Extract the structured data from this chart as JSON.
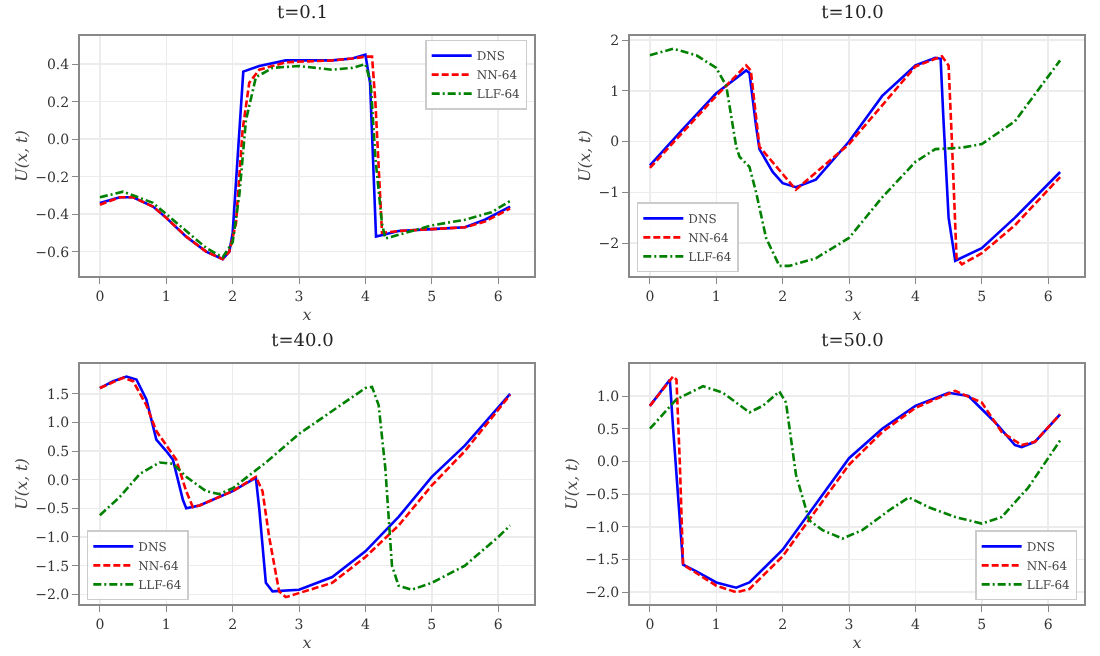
{
  "chart_data": [
    {
      "type": "line",
      "title": "t=0.1",
      "xlabel": "x",
      "ylabel": "U(x, t)",
      "xlim": [
        -0.3,
        6.54
      ],
      "ylim": [
        -0.73,
        0.55
      ],
      "xticks": [
        0,
        1,
        2,
        3,
        4,
        5,
        6
      ],
      "yticks": [
        {
          "value": -0.6,
          "label": "−0.6"
        },
        {
          "value": -0.4,
          "label": "−0.4"
        },
        {
          "value": -0.2,
          "label": "−0.2"
        },
        {
          "value": 0,
          "label": "0.0"
        },
        {
          "value": 0.2,
          "label": "0.2"
        },
        {
          "value": 0.4,
          "label": "0.4"
        }
      ],
      "grid": true,
      "legend": "top right",
      "series": [
        {
          "name": "DNS",
          "color": "#0000ff",
          "line_style": "solid",
          "x": [
            0,
            0.3,
            0.5,
            0.8,
            1.0,
            1.3,
            1.6,
            1.85,
            1.95,
            2.0,
            2.16,
            2.4,
            2.8,
            3.5,
            3.8,
            4.0,
            4.07,
            4.16,
            4.5,
            5.0,
            5.5,
            5.8,
            6.18
          ],
          "values": [
            -0.34,
            -0.31,
            -0.31,
            -0.36,
            -0.42,
            -0.52,
            -0.6,
            -0.64,
            -0.6,
            -0.5,
            0.36,
            0.39,
            0.42,
            0.42,
            0.43,
            0.45,
            0.3,
            -0.52,
            -0.49,
            -0.48,
            -0.47,
            -0.43,
            -0.36
          ]
        },
        {
          "name": "NN-64",
          "color": "#ff0000",
          "line_style": "dashed",
          "x": [
            0,
            0.3,
            0.5,
            0.8,
            1.0,
            1.3,
            1.6,
            1.85,
            1.95,
            2.05,
            2.15,
            2.25,
            2.4,
            2.8,
            3.5,
            3.8,
            4.0,
            4.1,
            4.15,
            4.25,
            4.5,
            5.0,
            5.5,
            5.8,
            6.18
          ],
          "values": [
            -0.35,
            -0.31,
            -0.31,
            -0.36,
            -0.42,
            -0.52,
            -0.6,
            -0.64,
            -0.6,
            -0.45,
            0.05,
            0.3,
            0.37,
            0.41,
            0.42,
            0.43,
            0.44,
            0.44,
            0.2,
            -0.5,
            -0.49,
            -0.48,
            -0.47,
            -0.44,
            -0.37
          ]
        },
        {
          "name": "LLF-64",
          "color": "#008000",
          "line_style": "dashdot",
          "x": [
            0,
            0.35,
            0.8,
            1.2,
            1.6,
            1.85,
            2.0,
            2.1,
            2.2,
            2.35,
            2.6,
            3.0,
            3.5,
            3.8,
            4.0,
            4.08,
            4.15,
            4.25,
            4.3,
            4.6,
            5.0,
            5.5,
            5.9,
            6.18
          ],
          "values": [
            -0.31,
            -0.28,
            -0.34,
            -0.46,
            -0.58,
            -0.63,
            -0.55,
            -0.3,
            0.1,
            0.33,
            0.38,
            0.39,
            0.37,
            0.38,
            0.4,
            0.3,
            -0.1,
            -0.45,
            -0.53,
            -0.5,
            -0.46,
            -0.43,
            -0.39,
            -0.33
          ]
        }
      ]
    },
    {
      "type": "line",
      "title": "t=10.0",
      "xlabel": "x",
      "ylabel": "U(x, t)",
      "xlim": [
        -0.3,
        6.54
      ],
      "ylim": [
        -2.65,
        2.08
      ],
      "xticks": [
        0,
        1,
        2,
        3,
        4,
        5,
        6
      ],
      "yticks": [
        {
          "value": -2,
          "label": "−2"
        },
        {
          "value": -1,
          "label": "−1"
        },
        0,
        1,
        2
      ],
      "grid": true,
      "legend": "bottom left",
      "series": [
        {
          "name": "DNS",
          "color": "#0000ff",
          "line_style": "solid",
          "x": [
            0,
            0.5,
            1.0,
            1.3,
            1.45,
            1.5,
            1.6,
            1.65,
            1.85,
            2.0,
            2.2,
            2.5,
            3.0,
            3.5,
            4.0,
            4.3,
            4.38,
            4.42,
            4.5,
            4.6,
            5.0,
            5.5,
            6.18
          ],
          "values": [
            -0.47,
            0.25,
            0.95,
            1.25,
            1.4,
            1.35,
            0.3,
            -0.15,
            -0.6,
            -0.82,
            -0.9,
            -0.75,
            0.0,
            0.9,
            1.5,
            1.65,
            1.63,
            0.5,
            -1.5,
            -2.35,
            -2.1,
            -1.5,
            -0.6
          ]
        },
        {
          "name": "NN-64",
          "color": "#ff0000",
          "line_style": "dashed",
          "x": [
            0,
            1.0,
            1.3,
            1.45,
            1.52,
            1.65,
            2.2,
            3.0,
            4.0,
            4.4,
            4.5,
            4.55,
            4.62,
            4.7,
            5.0,
            5.5,
            6.18
          ],
          "values": [
            -0.52,
            0.9,
            1.3,
            1.5,
            1.4,
            -0.1,
            -0.95,
            -0.05,
            1.48,
            1.68,
            1.5,
            0,
            -2.3,
            -2.42,
            -2.2,
            -1.65,
            -0.7
          ]
        },
        {
          "name": "LLF-64",
          "color": "#008000",
          "line_style": "dashdot",
          "x": [
            0,
            0.35,
            0.7,
            1.0,
            1.15,
            1.3,
            1.35,
            1.5,
            1.6,
            1.75,
            1.95,
            2.1,
            2.5,
            3.0,
            3.5,
            4.0,
            4.3,
            4.7,
            5.0,
            5.5,
            6.18
          ],
          "values": [
            1.7,
            1.83,
            1.7,
            1.45,
            1.1,
            -0.1,
            -0.3,
            -0.5,
            -1.0,
            -1.9,
            -2.45,
            -2.45,
            -2.3,
            -1.9,
            -1.1,
            -0.4,
            -0.15,
            -0.12,
            -0.05,
            0.4,
            1.6
          ]
        }
      ]
    },
    {
      "type": "line",
      "title": "t=40.0",
      "xlabel": "x",
      "ylabel": "U(x, t)",
      "xlim": [
        -0.3,
        6.54
      ],
      "ylim": [
        -2.17,
        2.02
      ],
      "xticks": [
        0,
        1,
        2,
        3,
        4,
        5,
        6
      ],
      "yticks": [
        {
          "value": -2,
          "label": "−2.0"
        },
        {
          "value": -1.5,
          "label": "−1.5"
        },
        {
          "value": -1,
          "label": "−1.0"
        },
        {
          "value": -0.5,
          "label": "−0.5"
        },
        {
          "value": 0,
          "label": "0.0"
        },
        {
          "value": 0.5,
          "label": "0.5"
        },
        {
          "value": 1,
          "label": "1.0"
        },
        {
          "value": 1.5,
          "label": "1.5"
        }
      ],
      "grid": true,
      "legend": "bottom left",
      "series": [
        {
          "name": "DNS",
          "color": "#0000ff",
          "line_style": "solid",
          "x": [
            0,
            0.2,
            0.4,
            0.55,
            0.7,
            0.85,
            1.0,
            1.1,
            1.25,
            1.3,
            1.5,
            2.0,
            2.3,
            2.35,
            2.4,
            2.5,
            2.6,
            3.0,
            3.5,
            4.0,
            4.5,
            5.0,
            5.5,
            6.18
          ],
          "values": [
            1.6,
            1.72,
            1.8,
            1.75,
            1.4,
            0.7,
            0.5,
            0.35,
            -0.35,
            -0.5,
            -0.45,
            -0.2,
            0.0,
            0.03,
            -0.5,
            -1.8,
            -1.95,
            -1.92,
            -1.7,
            -1.25,
            -0.65,
            0.05,
            0.6,
            1.5
          ]
        },
        {
          "name": "NN-64",
          "color": "#ff0000",
          "line_style": "dashed",
          "x": [
            0,
            0.35,
            0.5,
            0.7,
            0.85,
            1.0,
            1.15,
            1.3,
            1.4,
            1.5,
            2.0,
            2.35,
            2.45,
            2.55,
            2.7,
            2.8,
            3.0,
            3.5,
            4.0,
            4.5,
            5.0,
            5.5,
            6.18
          ],
          "values": [
            1.6,
            1.78,
            1.72,
            1.3,
            0.85,
            0.6,
            0.35,
            -0.2,
            -0.48,
            -0.45,
            -0.2,
            0.05,
            -0.2,
            -1.0,
            -1.95,
            -2.05,
            -1.98,
            -1.8,
            -1.35,
            -0.8,
            -0.1,
            0.5,
            1.48
          ]
        },
        {
          "name": "LLF-64",
          "color": "#008000",
          "line_style": "dashdot",
          "x": [
            0,
            0.3,
            0.6,
            0.9,
            1.1,
            1.3,
            1.6,
            1.8,
            2.0,
            2.5,
            3.0,
            3.5,
            4.0,
            4.1,
            4.2,
            4.3,
            4.4,
            4.5,
            4.7,
            5.0,
            5.5,
            6.0,
            6.18
          ],
          "values": [
            -0.62,
            -0.3,
            0.1,
            0.3,
            0.28,
            0.05,
            -0.2,
            -0.25,
            -0.15,
            0.3,
            0.8,
            1.2,
            1.6,
            1.62,
            1.3,
            0.2,
            -1.5,
            -1.85,
            -1.92,
            -1.8,
            -1.5,
            -1.0,
            -0.8
          ]
        }
      ]
    },
    {
      "type": "line",
      "title": "t=50.0",
      "xlabel": "x",
      "ylabel": "U(x, t)",
      "xlim": [
        -0.3,
        6.54
      ],
      "ylim": [
        -2.18,
        1.49
      ],
      "xticks": [
        0,
        1,
        2,
        3,
        4,
        5,
        6
      ],
      "yticks": [
        {
          "value": -2,
          "label": "−2.0"
        },
        {
          "value": -1.5,
          "label": "−1.5"
        },
        {
          "value": -1,
          "label": "−1.0"
        },
        {
          "value": -0.5,
          "label": "−0.5"
        },
        {
          "value": 0,
          "label": "0.0"
        },
        {
          "value": 0.5,
          "label": "0.5"
        },
        {
          "value": 1,
          "label": "1.0"
        }
      ],
      "grid": true,
      "legend": "bottom right",
      "series": [
        {
          "name": "DNS",
          "color": "#0000ff",
          "line_style": "solid",
          "x": [
            0,
            0.3,
            0.35,
            0.5,
            0.7,
            1.0,
            1.3,
            1.5,
            2.0,
            2.5,
            3.0,
            3.5,
            4.0,
            4.5,
            4.8,
            5.2,
            5.5,
            5.6,
            5.8,
            6.18
          ],
          "values": [
            0.85,
            1.25,
            0.5,
            -1.58,
            -1.68,
            -1.85,
            -1.93,
            -1.85,
            -1.35,
            -0.65,
            0.05,
            0.5,
            0.85,
            1.05,
            1.0,
            0.6,
            0.25,
            0.22,
            0.3,
            0.72
          ]
        },
        {
          "name": "NN-64",
          "color": "#ff0000",
          "line_style": "dashed",
          "x": [
            0,
            0.35,
            0.4,
            0.45,
            0.5,
            1.0,
            1.3,
            1.5,
            2.0,
            2.5,
            3.0,
            3.5,
            4.0,
            4.6,
            5.0,
            5.3,
            5.6,
            5.8,
            6.18
          ],
          "values": [
            0.85,
            1.3,
            1.25,
            0.0,
            -1.58,
            -1.9,
            -2.0,
            -1.95,
            -1.45,
            -0.75,
            -0.05,
            0.45,
            0.82,
            1.08,
            0.9,
            0.45,
            0.25,
            0.3,
            0.72
          ]
        },
        {
          "name": "LLF-64",
          "color": "#008000",
          "line_style": "dashdot",
          "x": [
            0,
            0.4,
            0.8,
            1.1,
            1.5,
            1.7,
            1.95,
            2.05,
            2.2,
            2.4,
            2.6,
            2.9,
            3.2,
            3.6,
            3.9,
            4.2,
            4.6,
            5.0,
            5.3,
            5.7,
            6.18
          ],
          "values": [
            0.5,
            0.95,
            1.15,
            1.05,
            0.75,
            0.85,
            1.07,
            0.9,
            -0.2,
            -0.9,
            -1.05,
            -1.18,
            -1.05,
            -0.75,
            -0.55,
            -0.7,
            -0.85,
            -0.95,
            -0.85,
            -0.4,
            0.32
          ]
        }
      ]
    }
  ]
}
